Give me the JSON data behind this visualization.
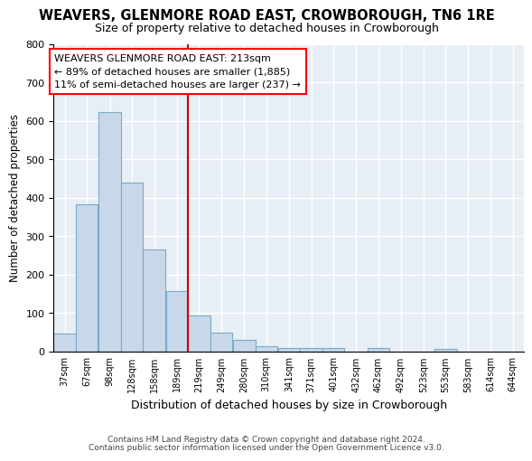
{
  "title": "WEAVERS, GLENMORE ROAD EAST, CROWBOROUGH, TN6 1RE",
  "subtitle": "Size of property relative to detached houses in Crowborough",
  "xlabel": "Distribution of detached houses by size in Crowborough",
  "ylabel": "Number of detached properties",
  "bar_color": "#c8d8ea",
  "bar_edge_color": "#7aaac8",
  "bg_color": "#e8eef5",
  "grid_color": "#ffffff",
  "marker_value": 219,
  "marker_color": "#cc0000",
  "bins": [
    37,
    67,
    98,
    128,
    158,
    189,
    219,
    249,
    280,
    310,
    341,
    371,
    401,
    432,
    462,
    492,
    523,
    553,
    583,
    614,
    644
  ],
  "bin_width": 30,
  "counts": [
    47,
    383,
    622,
    440,
    265,
    157,
    95,
    50,
    30,
    15,
    10,
    10,
    10,
    0,
    10,
    0,
    0,
    7,
    0,
    0,
    0
  ],
  "ylim": [
    0,
    800
  ],
  "yticks": [
    0,
    100,
    200,
    300,
    400,
    500,
    600,
    700,
    800
  ],
  "annotation_line1": "WEAVERS GLENMORE ROAD EAST: 213sqm",
  "annotation_line2": "← 89% of detached houses are smaller (1,885)",
  "annotation_line3": "11% of semi-detached houses are larger (237) →",
  "footnote1": "Contains HM Land Registry data © Crown copyright and database right 2024.",
  "footnote2": "Contains public sector information licensed under the Open Government Licence v3.0."
}
